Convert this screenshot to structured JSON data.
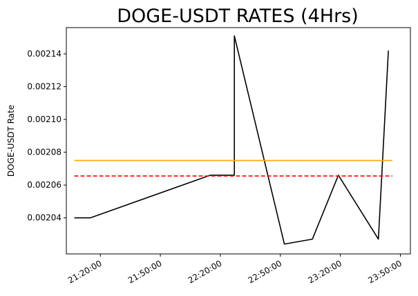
{
  "chart_data": {
    "type": "line",
    "title": "DOGE-USDT RATES (4Hrs)",
    "xlabel": "",
    "ylabel": "DOGE-USDT Rate",
    "x_ticks": [
      "21:20:00",
      "21:50:00",
      "22:20:00",
      "22:50:00",
      "23:20:00",
      "23:50:00"
    ],
    "y_ticks": [
      "0.00204",
      "0.00206",
      "0.00208",
      "0.00210",
      "0.00212",
      "0.00214"
    ],
    "y_tick_values": [
      0.00204,
      0.00206,
      0.00208,
      0.0021,
      0.00212,
      0.00214
    ],
    "xlim": [
      "21:03:00",
      "23:55:00"
    ],
    "ylim": [
      0.002018,
      0.002156
    ],
    "grid": false,
    "series": [
      {
        "color": "#000000",
        "style": "solid",
        "points": [
          {
            "x": "21:07:00",
            "y": 0.00204
          },
          {
            "x": "21:15:00",
            "y": 0.00204
          },
          {
            "x": "22:15:00",
            "y": 0.002066
          },
          {
            "x": "22:27:00",
            "y": 0.002066
          },
          {
            "x": "22:27:00",
            "y": 0.002151
          },
          {
            "x": "22:52:00",
            "y": 0.002024
          },
          {
            "x": "23:06:00",
            "y": 0.002027
          },
          {
            "x": "23:19:00",
            "y": 0.002066
          },
          {
            "x": "23:39:00",
            "y": 0.002027
          },
          {
            "x": "23:44:00",
            "y": 0.002142
          }
        ]
      },
      {
        "color": "#ffa500",
        "style": "solid",
        "points": [
          {
            "x": "21:07:00",
            "y": 0.002075
          },
          {
            "x": "23:46:00",
            "y": 0.002075
          }
        ]
      },
      {
        "color": "#ff0000",
        "style": "dashed",
        "points": [
          {
            "x": "21:07:00",
            "y": 0.0020655
          },
          {
            "x": "23:46:00",
            "y": 0.0020655
          }
        ]
      }
    ]
  }
}
